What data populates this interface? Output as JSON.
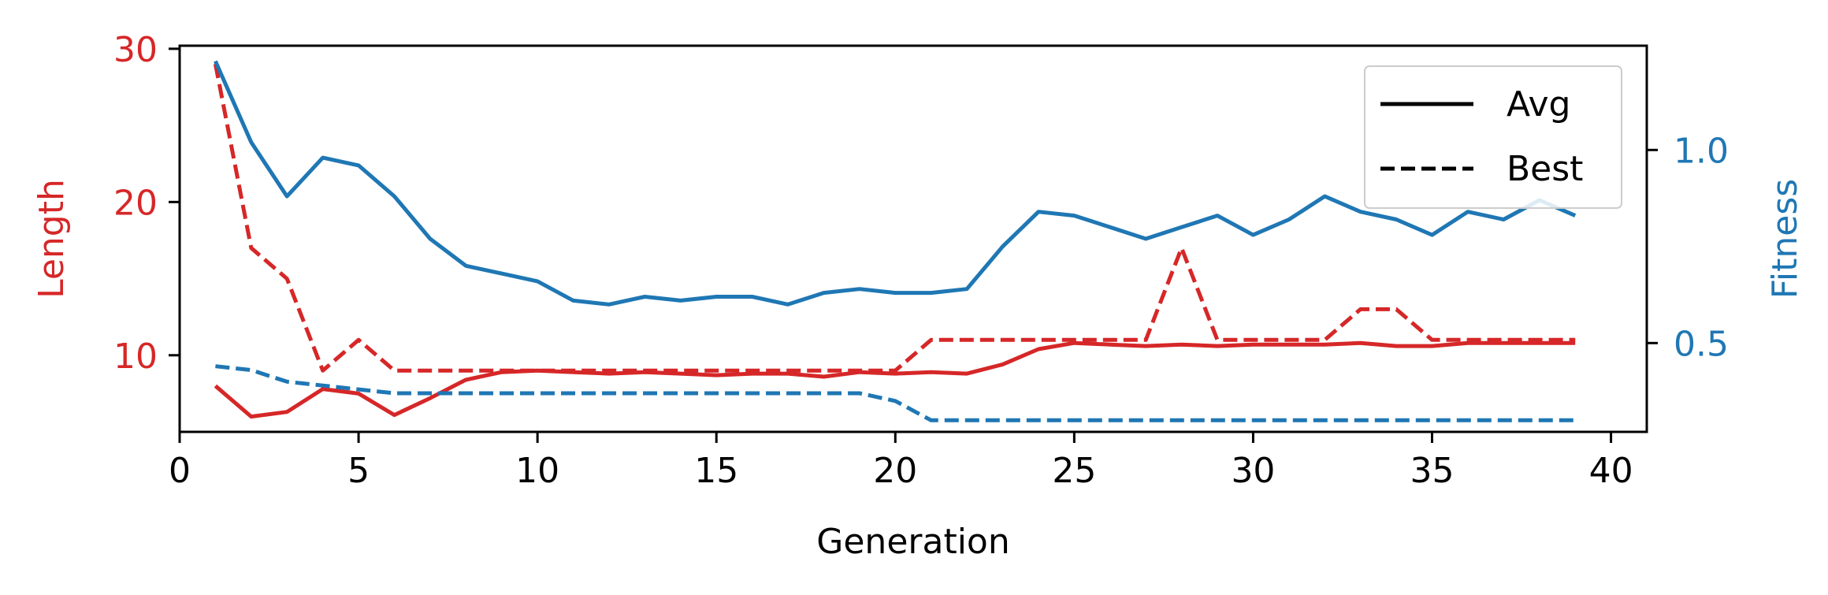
{
  "chart_data": {
    "type": "line",
    "x": [
      1,
      2,
      3,
      4,
      5,
      6,
      7,
      8,
      9,
      10,
      11,
      12,
      13,
      14,
      15,
      16,
      17,
      18,
      19,
      20,
      21,
      22,
      23,
      24,
      25,
      26,
      27,
      28,
      29,
      30,
      31,
      32,
      33,
      34,
      35,
      36,
      37,
      38,
      39
    ],
    "xlabel": "Generation",
    "xlim": [
      0,
      41
    ],
    "xticks": [
      0,
      5,
      10,
      15,
      20,
      25,
      30,
      35,
      40
    ],
    "left_axis": {
      "label": "Length",
      "color": "#d62728",
      "ylim": [
        5,
        30.2
      ],
      "ticks": [
        10,
        20,
        30
      ]
    },
    "right_axis": {
      "label": "Fitness",
      "color": "#1f77b4",
      "ylim": [
        0.27,
        1.27
      ],
      "ticks": [
        0.5,
        1.0
      ],
      "tick_labels": [
        "0.5",
        "1.0"
      ]
    },
    "series": [
      {
        "name": "Length Avg",
        "axis": "left",
        "style": "solid",
        "color": "#d62728",
        "values": [
          8.0,
          6.0,
          6.3,
          7.8,
          7.5,
          6.1,
          7.2,
          8.4,
          8.9,
          9.0,
          8.9,
          8.8,
          8.9,
          8.8,
          8.7,
          8.8,
          8.8,
          8.6,
          8.9,
          8.8,
          8.9,
          8.8,
          9.4,
          10.4,
          10.8,
          10.7,
          10.6,
          10.7,
          10.6,
          10.7,
          10.7,
          10.7,
          10.8,
          10.6,
          10.6,
          10.8,
          10.8,
          10.8,
          10.8
        ]
      },
      {
        "name": "Length Best",
        "axis": "left",
        "style": "dashed",
        "color": "#d62728",
        "values": [
          29.0,
          17.0,
          15.0,
          9.0,
          11.0,
          9.0,
          9.0,
          9.0,
          9.0,
          9.0,
          9.0,
          9.0,
          9.0,
          9.0,
          9.0,
          9.0,
          9.0,
          9.0,
          9.0,
          9.0,
          11.0,
          11.0,
          11.0,
          11.0,
          11.0,
          11.0,
          11.0,
          17.0,
          11.0,
          11.0,
          11.0,
          11.0,
          13.0,
          13.0,
          11.0,
          11.0,
          11.0,
          11.0,
          11.0
        ]
      },
      {
        "name": "Fitness Avg",
        "axis": "right",
        "style": "solid",
        "color": "#1f77b4",
        "values": [
          1.23,
          1.02,
          0.88,
          0.98,
          0.96,
          0.88,
          0.77,
          0.7,
          0.68,
          0.66,
          0.61,
          0.6,
          0.62,
          0.61,
          0.62,
          0.62,
          0.6,
          0.63,
          0.64,
          0.63,
          0.63,
          0.64,
          0.75,
          0.84,
          0.83,
          0.8,
          0.77,
          0.8,
          0.83,
          0.78,
          0.82,
          0.88,
          0.84,
          0.82,
          0.78,
          0.84,
          0.82,
          0.87,
          0.83
        ]
      },
      {
        "name": "Fitness Best",
        "axis": "right",
        "style": "dashed",
        "color": "#1f77b4",
        "values": [
          0.44,
          0.43,
          0.4,
          0.39,
          0.38,
          0.37,
          0.37,
          0.37,
          0.37,
          0.37,
          0.37,
          0.37,
          0.37,
          0.37,
          0.37,
          0.37,
          0.37,
          0.37,
          0.37,
          0.35,
          0.3,
          0.3,
          0.3,
          0.3,
          0.3,
          0.3,
          0.3,
          0.3,
          0.3,
          0.3,
          0.3,
          0.3,
          0.3,
          0.3,
          0.3,
          0.3,
          0.3,
          0.3,
          0.3
        ]
      }
    ],
    "legend": {
      "position": "top-right",
      "entries": [
        {
          "label": "Avg",
          "style": "solid"
        },
        {
          "label": "Best",
          "style": "dashed"
        }
      ]
    }
  }
}
